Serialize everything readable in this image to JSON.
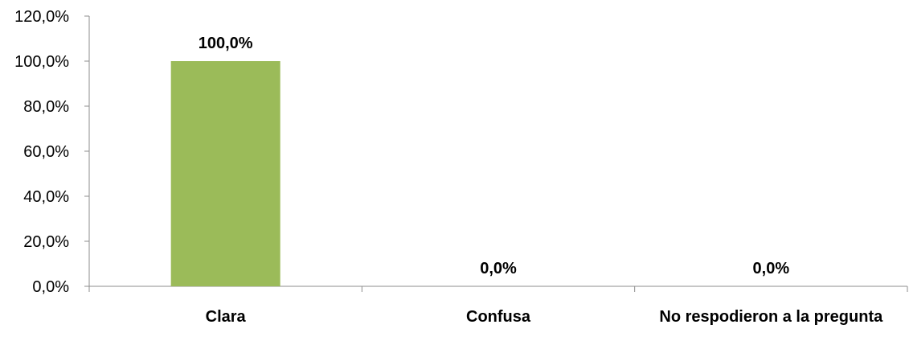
{
  "chart_data": {
    "type": "bar",
    "categories": [
      "Clara",
      "Confusa",
      "No respodieron a la pregunta"
    ],
    "values": [
      100.0,
      0.0,
      0.0
    ],
    "data_labels": [
      "100,0%",
      "0,0%",
      "0,0%"
    ],
    "ylim": [
      0,
      120
    ],
    "y_ticks": [
      0,
      20,
      40,
      60,
      80,
      100,
      120
    ],
    "y_tick_labels": [
      "0,0%",
      "20,0%",
      "40,0%",
      "60,0%",
      "80,0%",
      "100,0%",
      "120,0%"
    ],
    "title": "",
    "xlabel": "",
    "ylabel": "",
    "grid": false,
    "legend": "none",
    "colors": {
      "bar": "#9bbb59",
      "axis": "#8c8c8c",
      "text": "#000000"
    }
  }
}
